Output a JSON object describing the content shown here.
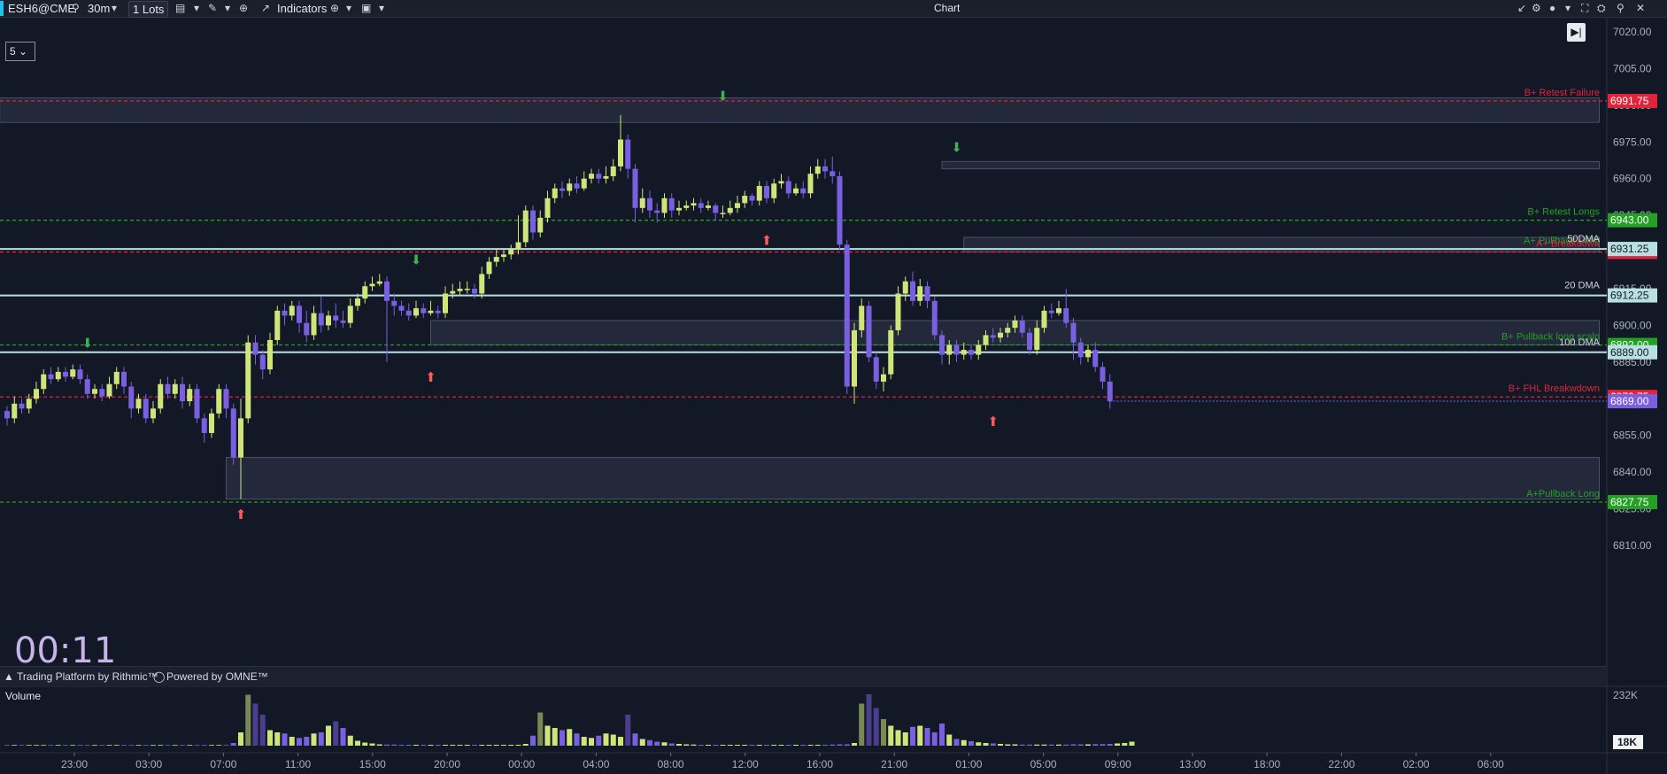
{
  "toolbar": {
    "symbol": "ESH6@CME",
    "timeframe": "30m",
    "lots_count": "1",
    "lots_label": "Lots",
    "indicators_label": "Indicators",
    "window_title": "Chart",
    "icons": [
      "search-icon",
      "chevron-down-icon",
      "chat-icon",
      "pencil-icon",
      "zoom-icon",
      "indicators-icon",
      "template-icon",
      "window-icon",
      "collapse-icon",
      "settings-icon",
      "camera-icon",
      "fullscreen-icon",
      "gear-icon",
      "pin-icon",
      "close-icon"
    ]
  },
  "interval_select": {
    "value": "5"
  },
  "timer": "00:11",
  "footer": {
    "trading_platform": "Trading Platform by Rithmic™",
    "powered_by": "Powered by OMNE™"
  },
  "volume": {
    "label": "Volume",
    "max_label": "232K",
    "current_badge": "18K"
  },
  "chart_data": {
    "type": "candlestick",
    "symbol": "ESH6@CME",
    "timeframe": "30m",
    "y_range": [
      6805,
      7025
    ],
    "y_ticks": [
      "7020.00",
      "7005.00",
      "6990.00",
      "6975.00",
      "6960.00",
      "6945.00",
      "6930.00",
      "6915.00",
      "6900.00",
      "6885.00",
      "6870.00",
      "6855.00",
      "6840.00",
      "6825.00",
      "6810.00"
    ],
    "x_ticks": [
      "23:00",
      "03:00",
      "07:00",
      "11:00",
      "15:00",
      "20:00",
      "00:00",
      "04:00",
      "08:00",
      "12:00",
      "16:00",
      "21:00",
      "01:00",
      "05:00",
      "09:00",
      "13:00",
      "18:00",
      "22:00",
      "02:00",
      "06:00"
    ],
    "levels": [
      {
        "label": "B+ Retest Failure",
        "price": 6991.75,
        "price_text": "6991.75",
        "color": "#e0243c"
      },
      {
        "label": "B+ Retest Longs",
        "price": 6943.0,
        "price_text": "6943.00",
        "color": "#24a024"
      },
      {
        "label": "A+ Pullback Long",
        "price": 6931.25,
        "price_text": "6931.25",
        "color": "#24a024"
      },
      {
        "label": "A+ Breakdown",
        "price": 6930.0,
        "price_text": "6930.00",
        "color": "#e0243c"
      },
      {
        "label": "B+ Pullback long scalp",
        "price": 6892.0,
        "price_text": "6892.00",
        "color": "#24a024"
      },
      {
        "label": "B+ FHL Breakwdown",
        "price": 6870.75,
        "price_text": "6870.75",
        "color": "#e0243c"
      },
      {
        "label": "A+Pullback Long",
        "price": 6827.75,
        "price_text": "6827.75",
        "color": "#24a024"
      }
    ],
    "moving_averages": [
      {
        "label": "50DMA",
        "price": 6931.25,
        "price_text": "6931.25"
      },
      {
        "label": "20 DMA",
        "price": 6912.25,
        "price_text": "6912.25"
      },
      {
        "label": "100 DMA",
        "price": 6889.0,
        "price_text": "6889.00"
      }
    ],
    "last_price": {
      "price": 6869.0,
      "price_text": "6869.00"
    },
    "candles": [
      [
        6865,
        6862,
        6867,
        6859
      ],
      [
        6862,
        6868,
        6871,
        6860
      ],
      [
        6868,
        6866,
        6870,
        6864
      ],
      [
        6866,
        6870,
        6872,
        6864
      ],
      [
        6870,
        6874,
        6877,
        6868
      ],
      [
        6874,
        6880,
        6882,
        6872
      ],
      [
        6880,
        6878,
        6883,
        6876
      ],
      [
        6878,
        6881,
        6883,
        6877
      ],
      [
        6881,
        6879,
        6883,
        6877
      ],
      [
        6879,
        6882,
        6884,
        6878
      ],
      [
        6882,
        6878,
        6884,
        6876
      ],
      [
        6878,
        6872,
        6880,
        6870
      ],
      [
        6872,
        6874,
        6876,
        6870
      ],
      [
        6874,
        6871,
        6876,
        6869
      ],
      [
        6871,
        6876,
        6879,
        6870
      ],
      [
        6876,
        6881,
        6883,
        6874
      ],
      [
        6881,
        6875,
        6883,
        6872
      ],
      [
        6875,
        6866,
        6877,
        6862
      ],
      [
        6866,
        6870,
        6872,
        6864
      ],
      [
        6870,
        6862,
        6872,
        6860
      ],
      [
        6862,
        6866,
        6869,
        6860
      ],
      [
        6866,
        6876,
        6878,
        6864
      ],
      [
        6876,
        6872,
        6879,
        6870
      ],
      [
        6872,
        6876,
        6878,
        6870
      ],
      [
        6876,
        6869,
        6879,
        6866
      ],
      [
        6869,
        6874,
        6876,
        6867
      ],
      [
        6874,
        6862,
        6876,
        6860
      ],
      [
        6862,
        6856,
        6864,
        6852
      ],
      [
        6856,
        6864,
        6866,
        6854
      ],
      [
        6864,
        6874,
        6876,
        6862
      ],
      [
        6874,
        6866,
        6876,
        6862
      ],
      [
        6866,
        6846,
        6868,
        6843
      ],
      [
        6846,
        6862,
        6870,
        6829
      ],
      [
        6862,
        6893,
        6896,
        6860
      ],
      [
        6893,
        6888,
        6896,
        6884
      ],
      [
        6888,
        6882,
        6890,
        6878
      ],
      [
        6882,
        6894,
        6897,
        6880
      ],
      [
        6894,
        6906,
        6908,
        6892
      ],
      [
        6906,
        6904,
        6909,
        6900
      ],
      [
        6904,
        6908,
        6910,
        6902
      ],
      [
        6908,
        6901,
        6910,
        6897
      ],
      [
        6901,
        6896,
        6906,
        6893
      ],
      [
        6896,
        6905,
        6908,
        6894
      ],
      [
        6905,
        6900,
        6912,
        6897
      ],
      [
        6900,
        6904,
        6906,
        6898
      ],
      [
        6904,
        6902,
        6909,
        6899
      ],
      [
        6902,
        6901,
        6906,
        6899
      ],
      [
        6901,
        6908,
        6911,
        6899
      ],
      [
        6908,
        6911,
        6913,
        6906
      ],
      [
        6911,
        6916,
        6918,
        6909
      ],
      [
        6916,
        6917,
        6920,
        6914
      ],
      [
        6917,
        6918,
        6921,
        6916
      ],
      [
        6918,
        6910,
        6920,
        6885
      ],
      [
        6910,
        6908,
        6913,
        6904
      ],
      [
        6908,
        6906,
        6910,
        6904
      ],
      [
        6906,
        6904,
        6909,
        6902
      ],
      [
        6904,
        6907,
        6910,
        6903
      ],
      [
        6907,
        6905,
        6909,
        6903
      ],
      [
        6905,
        6906,
        6910,
        6904
      ],
      [
        6906,
        6905,
        6908,
        6903
      ],
      [
        6905,
        6913,
        6916,
        6903
      ],
      [
        6913,
        6914,
        6917,
        6911
      ],
      [
        6914,
        6915,
        6918,
        6912
      ],
      [
        6915,
        6915,
        6918,
        6913
      ],
      [
        6915,
        6913,
        6917,
        6911
      ],
      [
        6913,
        6921,
        6924,
        6911
      ],
      [
        6921,
        6926,
        6928,
        6919
      ],
      [
        6926,
        6928,
        6931,
        6924
      ],
      [
        6928,
        6929,
        6931,
        6926
      ],
      [
        6929,
        6931,
        6933,
        6927
      ],
      [
        6931,
        6934,
        6945,
        6929
      ],
      [
        6934,
        6947,
        6949,
        6932
      ],
      [
        6947,
        6938,
        6949,
        6935
      ],
      [
        6938,
        6944,
        6947,
        6936
      ],
      [
        6944,
        6952,
        6955,
        6942
      ],
      [
        6952,
        6956,
        6958,
        6950
      ],
      [
        6956,
        6955,
        6959,
        6952
      ],
      [
        6955,
        6958,
        6960,
        6953
      ],
      [
        6958,
        6956,
        6961,
        6954
      ],
      [
        6956,
        6960,
        6963,
        6955
      ],
      [
        6960,
        6962,
        6964,
        6958
      ],
      [
        6962,
        6960,
        6964,
        6958
      ],
      [
        6960,
        6961,
        6965,
        6958
      ],
      [
        6961,
        6965,
        6968,
        6959
      ],
      [
        6965,
        6976,
        6986,
        6963
      ],
      [
        6976,
        6964,
        6978,
        6960
      ],
      [
        6964,
        6948,
        6966,
        6942
      ],
      [
        6948,
        6952,
        6956,
        6946
      ],
      [
        6952,
        6947,
        6955,
        6944
      ],
      [
        6947,
        6946,
        6950,
        6942
      ],
      [
        6946,
        6952,
        6954,
        6944
      ],
      [
        6952,
        6947,
        6954,
        6944
      ],
      [
        6947,
        6948,
        6951,
        6945
      ],
      [
        6948,
        6949,
        6951,
        6947
      ],
      [
        6949,
        6950,
        6952,
        6947
      ],
      [
        6950,
        6948,
        6952,
        6946
      ],
      [
        6948,
        6949,
        6951,
        6947
      ],
      [
        6949,
        6946,
        6950,
        6943
      ],
      [
        6946,
        6946,
        6949,
        6944
      ],
      [
        6946,
        6948,
        6951,
        6945
      ],
      [
        6948,
        6950,
        6953,
        6946
      ],
      [
        6950,
        6953,
        6955,
        6948
      ],
      [
        6953,
        6951,
        6954,
        6949
      ],
      [
        6951,
        6957,
        6959,
        6949
      ],
      [
        6957,
        6952,
        6959,
        6950
      ],
      [
        6952,
        6958,
        6960,
        6950
      ],
      [
        6958,
        6959,
        6962,
        6956
      ],
      [
        6959,
        6954,
        6961,
        6952
      ],
      [
        6954,
        6956,
        6958,
        6953
      ],
      [
        6956,
        6954,
        6959,
        6952
      ],
      [
        6954,
        6962,
        6965,
        6952
      ],
      [
        6962,
        6965,
        6968,
        6960
      ],
      [
        6965,
        6963,
        6968,
        6960
      ],
      [
        6963,
        6961,
        6969,
        6958
      ],
      [
        6961,
        6933,
        6963,
        6931
      ],
      [
        6933,
        6875,
        6935,
        6872
      ],
      [
        6875,
        6898,
        6901,
        6868
      ],
      [
        6898,
        6908,
        6911,
        6895
      ],
      [
        6908,
        6887,
        6910,
        6885
      ],
      [
        6887,
        6877,
        6889,
        6874
      ],
      [
        6877,
        6880,
        6883,
        6873
      ],
      [
        6880,
        6898,
        6900,
        6878
      ],
      [
        6898,
        6913,
        6916,
        6896
      ],
      [
        6913,
        6918,
        6920,
        6910
      ],
      [
        6918,
        6910,
        6922,
        6908
      ],
      [
        6910,
        6916,
        6919,
        6908
      ],
      [
        6916,
        6910,
        6918,
        6907
      ],
      [
        6910,
        6896,
        6912,
        6894
      ],
      [
        6896,
        6888,
        6898,
        6884
      ],
      [
        6888,
        6892,
        6894,
        6884
      ],
      [
        6892,
        6888,
        6894,
        6885
      ],
      [
        6888,
        6890,
        6893,
        6886
      ],
      [
        6890,
        6888,
        6892,
        6886
      ],
      [
        6888,
        6892,
        6894,
        6886
      ],
      [
        6892,
        6896,
        6898,
        6890
      ],
      [
        6896,
        6895,
        6899,
        6893
      ],
      [
        6895,
        6897,
        6899,
        6893
      ],
      [
        6897,
        6899,
        6901,
        6895
      ],
      [
        6899,
        6902,
        6904,
        6897
      ],
      [
        6902,
        6897,
        6904,
        6895
      ],
      [
        6897,
        6890,
        6899,
        6888
      ],
      [
        6890,
        6899,
        6902,
        6888
      ],
      [
        6899,
        6906,
        6908,
        6897
      ],
      [
        6906,
        6905,
        6909,
        6903
      ],
      [
        6905,
        6907,
        6910,
        6904
      ],
      [
        6907,
        6901,
        6915,
        6899
      ],
      [
        6901,
        6893,
        6903,
        6886
      ],
      [
        6893,
        6887,
        6895,
        6884
      ],
      [
        6887,
        6890,
        6892,
        6885
      ],
      [
        6890,
        6883,
        6893,
        6881
      ],
      [
        6883,
        6877,
        6885,
        6874
      ],
      [
        6877,
        6869,
        6880,
        6866
      ]
    ],
    "volumes": [
      3,
      3,
      3,
      3,
      3,
      3,
      3,
      3,
      3,
      3,
      3,
      3,
      3,
      3,
      3,
      3,
      3,
      3,
      3,
      3,
      3,
      3,
      3,
      3,
      3,
      3,
      3,
      3,
      3,
      3,
      3,
      12,
      60,
      230,
      190,
      140,
      70,
      60,
      55,
      40,
      35,
      40,
      55,
      60,
      90,
      110,
      80,
      45,
      22,
      14,
      10,
      6,
      5,
      5,
      4,
      4,
      4,
      4,
      4,
      4,
      4,
      4,
      4,
      4,
      4,
      4,
      4,
      4,
      4,
      4,
      4,
      8,
      45,
      150,
      90,
      80,
      70,
      75,
      55,
      40,
      35,
      45,
      55,
      50,
      40,
      140,
      55,
      30,
      25,
      18,
      15,
      10,
      8,
      6,
      5,
      4,
      4,
      4,
      4,
      4,
      4,
      4,
      4,
      4,
      4,
      4,
      4,
      4,
      4,
      4,
      4,
      4,
      4,
      5,
      6,
      6,
      12,
      190,
      232,
      170,
      120,
      90,
      70,
      60,
      85,
      90,
      80,
      60,
      100,
      50,
      30,
      25,
      20,
      15,
      12,
      10,
      8,
      6,
      6,
      5,
      5,
      5,
      5,
      5,
      5,
      5,
      6,
      6,
      6,
      7,
      7,
      8,
      10,
      12,
      18
    ],
    "volume_max": 232,
    "zones": [
      {
        "x1": -1,
        "x2": 218,
        "top": 6993,
        "bottom": 6983
      },
      {
        "x1": 128,
        "x2": 218,
        "top": 6967,
        "bottom": 6964
      },
      {
        "x1": 131,
        "x2": 218,
        "top": 6936,
        "bottom": 6930
      },
      {
        "x1": 58,
        "x2": 218,
        "top": 6902,
        "bottom": 6892
      },
      {
        "x1": 30,
        "x2": 218,
        "top": 6846,
        "bottom": 6829
      }
    ],
    "arrows_down": [
      {
        "i": 11,
        "price": 6891
      },
      {
        "i": 56,
        "price": 6925
      },
      {
        "i": 98,
        "price": 6992
      },
      {
        "i": 130,
        "price": 6971
      }
    ],
    "arrows_up": [
      {
        "i": 32,
        "price": 6826
      },
      {
        "i": 58,
        "price": 6882
      },
      {
        "i": 104,
        "price": 6938
      },
      {
        "i": 135,
        "price": 6864
      }
    ]
  }
}
